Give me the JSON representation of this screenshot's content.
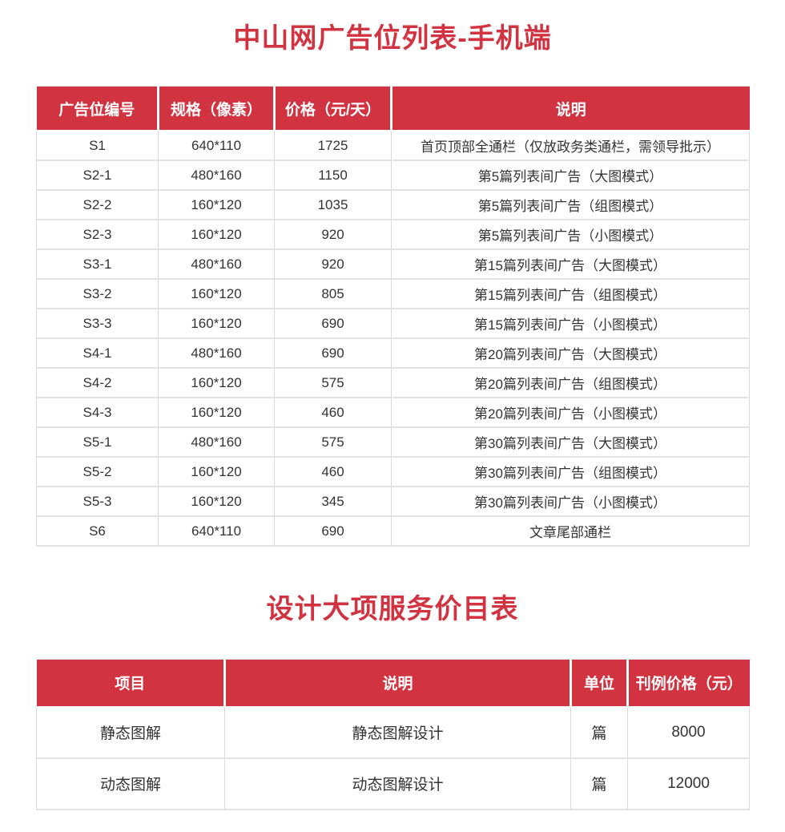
{
  "colors": {
    "accent_red": "#d23340",
    "header_text": "#ffffff",
    "body_text": "#333333",
    "border_gray": "#d9d9d9"
  },
  "mobile_ads": {
    "title": "中山网广告位列表-手机端",
    "headers": [
      "广告位编号",
      "规格（像素）",
      "价格（元/天）",
      "说明"
    ],
    "rows": [
      [
        "S1",
        "640*110",
        "1725",
        "首页顶部全通栏（仅放政务类通栏，需领导批示）"
      ],
      [
        "S2-1",
        "480*160",
        "1150",
        "第5篇列表间广告（大图模式）"
      ],
      [
        "S2-2",
        "160*120",
        "1035",
        "第5篇列表间广告（组图模式）"
      ],
      [
        "S2-3",
        "160*120",
        "920",
        "第5篇列表间广告（小图模式）"
      ],
      [
        "S3-1",
        "480*160",
        "920",
        "第15篇列表间广告（大图模式）"
      ],
      [
        "S3-2",
        "160*120",
        "805",
        "第15篇列表间广告（组图模式）"
      ],
      [
        "S3-3",
        "160*120",
        "690",
        "第15篇列表间广告（小图模式）"
      ],
      [
        "S4-1",
        "480*160",
        "690",
        "第20篇列表间广告（大图模式）"
      ],
      [
        "S4-2",
        "160*120",
        "575",
        "第20篇列表间广告（组图模式）"
      ],
      [
        "S4-3",
        "160*120",
        "460",
        "第20篇列表间广告（小图模式）"
      ],
      [
        "S5-1",
        "480*160",
        "575",
        "第30篇列表间广告（大图模式）"
      ],
      [
        "S5-2",
        "160*120",
        "460",
        "第30篇列表间广告（组图模式）"
      ],
      [
        "S5-3",
        "160*120",
        "345",
        "第30篇列表间广告（小图模式）"
      ],
      [
        "S6",
        "640*110",
        "690",
        "文章尾部通栏"
      ]
    ]
  },
  "design_services": {
    "title": "设计大项服务价目表",
    "headers": [
      "项目",
      "说明",
      "单位",
      "刊例价格（元）"
    ],
    "rows": [
      [
        "静态图解",
        "静态图解设计",
        "篇",
        "8000"
      ],
      [
        "动态图解",
        "动态图解设计",
        "篇",
        "12000"
      ]
    ]
  }
}
